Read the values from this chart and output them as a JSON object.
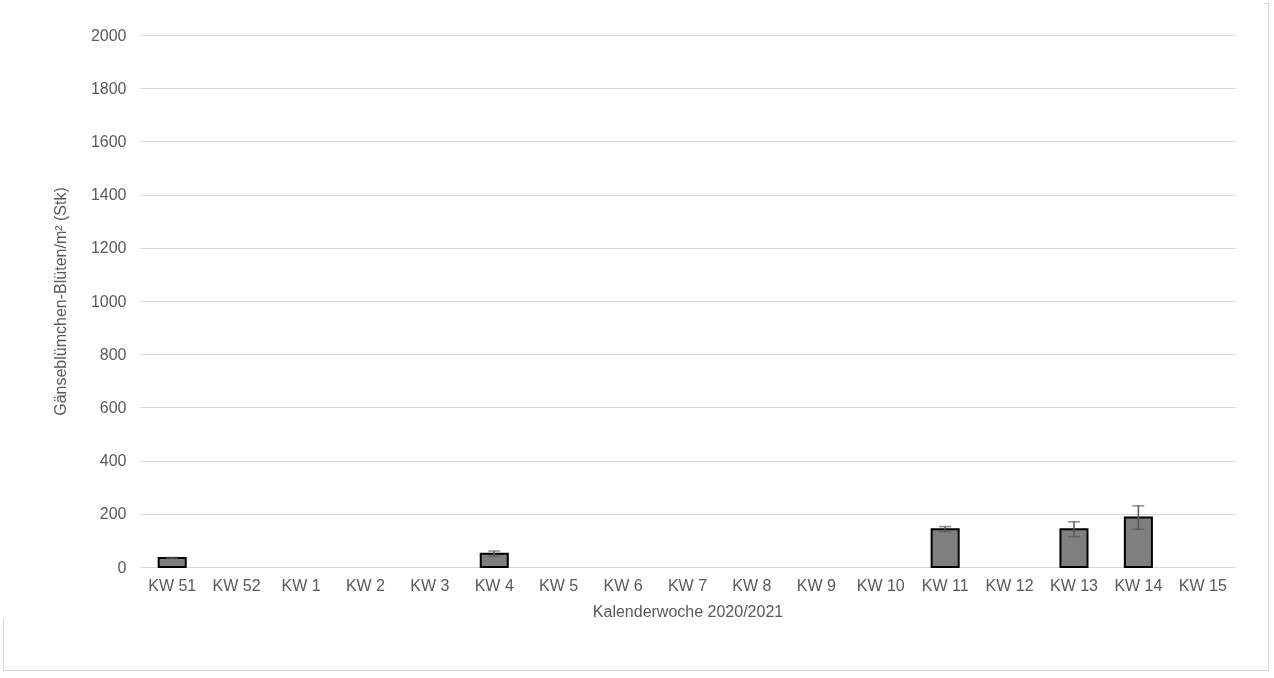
{
  "chart_data": {
    "type": "bar",
    "xlabel": "Kalenderwoche 2020/2021",
    "ylabel": "Gänseblümchen-Blüten/m² (Stk)",
    "categories": [
      "KW 51",
      "KW 52",
      "KW 1",
      "KW 2",
      "KW 3",
      "KW 4",
      "KW 5",
      "KW 6",
      "KW 7",
      "KW 8",
      "KW 9",
      "KW 10",
      "KW 11",
      "KW 12",
      "KW 13",
      "KW 14",
      "KW 15"
    ],
    "values": [
      34,
      null,
      null,
      null,
      null,
      50,
      null,
      null,
      null,
      null,
      null,
      null,
      142,
      null,
      142,
      186,
      null
    ],
    "errors": [
      2,
      null,
      null,
      null,
      null,
      10,
      null,
      null,
      null,
      null,
      null,
      null,
      10,
      null,
      28,
      44,
      null
    ],
    "color": "#7f7f7f",
    "ylim": [
      0,
      2000
    ],
    "yticks": [
      0,
      200,
      400,
      600,
      800,
      1000,
      1200,
      1400,
      1600,
      1800,
      2000
    ],
    "grid": "y"
  }
}
